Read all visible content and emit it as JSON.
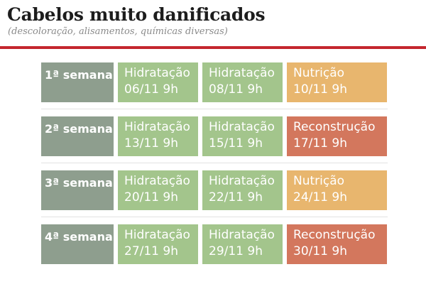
{
  "header": {
    "title": "Cabelos muito danificados",
    "subtitle": "(descoloração, alisamentos, químicas diversas)"
  },
  "colors": {
    "hidratacao": "#a3c58c",
    "nutricao": "#e8b66e",
    "reconstrucao": "#d3775d",
    "week_label": "#8e9e8e",
    "accent_rule": "#c4262e"
  },
  "weeks": [
    {
      "label": "1ª semana",
      "sessions": [
        {
          "treatment": "Hidratação",
          "date": "06/11 9h"
        },
        {
          "treatment": "Hidratação",
          "date": "08/11 9h"
        },
        {
          "treatment": "Nutrição",
          "date": "10/11 9h"
        }
      ]
    },
    {
      "label": "2ª semana",
      "sessions": [
        {
          "treatment": "Hidratação",
          "date": "13/11 9h"
        },
        {
          "treatment": "Hidratação",
          "date": "15/11 9h"
        },
        {
          "treatment": "Reconstrução",
          "date": "17/11 9h"
        }
      ]
    },
    {
      "label": "3ª semana",
      "sessions": [
        {
          "treatment": "Hidratação",
          "date": "20/11 9h"
        },
        {
          "treatment": "Hidratação",
          "date": "22/11 9h"
        },
        {
          "treatment": "Nutrição",
          "date": "24/11 9h"
        }
      ]
    },
    {
      "label": "4ª semana",
      "sessions": [
        {
          "treatment": "Hidratação",
          "date": "27/11 9h"
        },
        {
          "treatment": "Hidratação",
          "date": "29/11 9h"
        },
        {
          "treatment": "Reconstrução",
          "date": "30/11 9h"
        }
      ]
    }
  ]
}
